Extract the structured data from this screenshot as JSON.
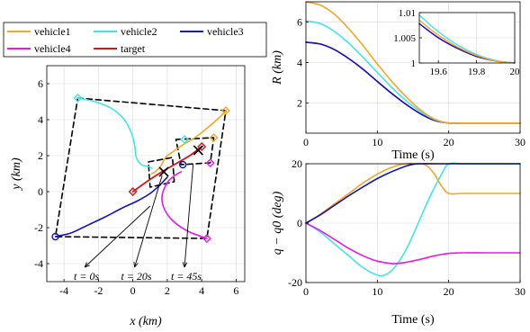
{
  "colors": {
    "vehicle1": "#F5A623",
    "vehicle2": "#3FE6E8",
    "vehicle3": "#1414B8",
    "vehicle4": "#E619E6",
    "target": "#D91414",
    "formation": "#000000"
  },
  "legend": {
    "placement": "top-left",
    "entries": [
      "vehicle1",
      "vehicle2",
      "vehicle3",
      "vehicle4",
      "target"
    ]
  },
  "chart_data": [
    {
      "id": "trajectory",
      "type": "line",
      "xlabel": "x (km)",
      "ylabel": "y (km)",
      "xlim": [
        -5,
        6.5
      ],
      "ylim": [
        -5,
        7
      ],
      "xticks": [
        -4,
        -2,
        0,
        2,
        4,
        6
      ],
      "yticks": [
        -4,
        -2,
        0,
        2,
        4,
        6
      ],
      "grid": true,
      "series": [
        {
          "name": "vehicle1",
          "x": [
            5.4,
            5.0,
            4.4,
            3.6,
            2.9,
            2.3,
            1.9,
            1.6,
            1.3,
            1.1
          ],
          "y": [
            4.5,
            4.1,
            3.6,
            3.0,
            2.6,
            2.2,
            1.9,
            1.4,
            1.1,
            1.0
          ]
        },
        {
          "name": "vehicle2",
          "x": [
            -3.2,
            -2.2,
            -1.2,
            -0.5,
            -0.1,
            0.1,
            0.2,
            0.5,
            0.9,
            1.1
          ],
          "y": [
            5.2,
            5.0,
            4.6,
            4.0,
            3.3,
            2.6,
            1.9,
            1.5,
            1.4,
            1.3
          ]
        },
        {
          "name": "vehicle3",
          "x": [
            -4.5,
            -3.6,
            -2.7,
            -1.6,
            -0.6,
            0.3,
            1.0,
            1.5,
            1.8,
            2.0
          ],
          "y": [
            -2.5,
            -2.3,
            -1.9,
            -1.4,
            -0.9,
            -0.5,
            -0.1,
            0.3,
            0.6,
            0.8
          ]
        },
        {
          "name": "vehicle4",
          "x": [
            4.3,
            3.2,
            2.3,
            1.8,
            1.7,
            2.0,
            2.3,
            2.6,
            2.8
          ],
          "y": [
            -2.6,
            -2.2,
            -1.6,
            -0.9,
            -0.2,
            0.5,
            0.8,
            1.0,
            1.1
          ]
        },
        {
          "name": "target",
          "x": [
            0,
            0.8,
            1.6,
            2.4,
            3.3,
            4.0
          ],
          "y": [
            0,
            0.55,
            1.05,
            1.5,
            2.0,
            2.5
          ]
        }
      ],
      "formations": [
        {
          "time": "t = 0s",
          "x": [
            -3.2,
            5.4,
            4.3,
            -4.5
          ],
          "y": [
            5.2,
            4.5,
            -2.6,
            -2.5
          ]
        },
        {
          "time": "t = 20s",
          "x": [
            0.9,
            2.3,
            2.4,
            1.0
          ],
          "y": [
            1.65,
            1.9,
            0.55,
            0.25
          ]
        },
        {
          "time": "t = 45s",
          "x": [
            2.5,
            4.7,
            4.5,
            2.8
          ],
          "y": [
            2.9,
            3.0,
            1.6,
            1.5
          ]
        }
      ],
      "markers": {
        "crosses": [
          {
            "x": 1.8,
            "y": 1.1
          },
          {
            "x": 3.8,
            "y": 2.3
          }
        ],
        "vehicle1_positions": [
          {
            "x": 5.4,
            "y": 4.5
          },
          {
            "x": 4.7,
            "y": 3.0
          }
        ],
        "vehicle2_positions": [
          {
            "x": -3.2,
            "y": 5.2
          },
          {
            "x": 3.0,
            "y": 2.9
          }
        ],
        "vehicle3_positions": [
          {
            "x": -4.5,
            "y": -2.5
          },
          {
            "x": 2.9,
            "y": 1.5
          }
        ],
        "vehicle4_positions": [
          {
            "x": 4.3,
            "y": -2.6
          },
          {
            "x": 4.5,
            "y": 1.6
          }
        ],
        "target_positions": [
          {
            "x": 0,
            "y": 0
          },
          {
            "x": 4.0,
            "y": 2.5
          }
        ]
      },
      "annotations": [
        {
          "text": "t = 0s",
          "from": {
            "x": 1.0,
            "y": -0.8
          },
          "to": {
            "x": -2.8,
            "y": -4.2
          }
        },
        {
          "text": "t = 20s",
          "from": {
            "x": 1.7,
            "y": 0.9
          },
          "to": {
            "x": 0.1,
            "y": -4.2
          }
        },
        {
          "text": "t = 45s",
          "from": {
            "x": 3.5,
            "y": 1.5
          },
          "to": {
            "x": 3.0,
            "y": -4.2
          }
        }
      ]
    },
    {
      "id": "range",
      "type": "line",
      "xlabel": "Time (s)",
      "ylabel": "R (km)",
      "xlim": [
        0,
        30
      ],
      "ylim": [
        0.5,
        7
      ],
      "xticks": [
        0,
        10,
        20,
        30
      ],
      "yticks": [
        2,
        4,
        6
      ],
      "grid": true,
      "series": [
        {
          "name": "vehicle1",
          "x": [
            0,
            2,
            4,
            6,
            8,
            10,
            12,
            14,
            16,
            18,
            20,
            22,
            24,
            26,
            28,
            30
          ],
          "y": [
            7.0,
            6.84,
            6.38,
            5.67,
            4.83,
            3.93,
            3.07,
            2.31,
            1.66,
            1.2,
            1.0,
            1.0,
            1.0,
            1.0,
            1.0,
            1.0
          ]
        },
        {
          "name": "vehicle2",
          "x": [
            0,
            2,
            4,
            6,
            8,
            10,
            12,
            14,
            16,
            18,
            20,
            22,
            24,
            26,
            28,
            30
          ],
          "y": [
            6.05,
            5.92,
            5.53,
            4.95,
            4.25,
            3.51,
            2.77,
            2.12,
            1.58,
            1.18,
            1.0,
            1.0,
            1.0,
            1.0,
            1.0,
            1.0
          ]
        },
        {
          "name": "vehicle3",
          "x": [
            0,
            2,
            4,
            6,
            8,
            10,
            12,
            14,
            16,
            18,
            20,
            22,
            24,
            26,
            28,
            30
          ],
          "y": [
            5.0,
            4.91,
            4.63,
            4.19,
            3.66,
            3.06,
            2.47,
            1.93,
            1.47,
            1.13,
            1.0,
            1.0,
            1.0,
            1.0,
            1.0,
            1.0
          ]
        },
        {
          "name": "vehicle4",
          "x": [
            0,
            2,
            4,
            6,
            8,
            10,
            12,
            14,
            16,
            18,
            20,
            22,
            24,
            26,
            28,
            30
          ],
          "y": [
            5.0,
            4.91,
            4.63,
            4.19,
            3.66,
            3.06,
            2.47,
            1.93,
            1.47,
            1.13,
            1.0,
            1.0,
            1.0,
            1.0,
            1.0,
            1.0
          ]
        }
      ],
      "inset": {
        "xlim": [
          19.5,
          20.0
        ],
        "ylim": [
          1.0,
          1.01
        ],
        "xticks": [
          19.6,
          19.8,
          20
        ],
        "yticks": [
          1,
          1.005,
          1.01
        ],
        "ytick_labels": [
          "1",
          "1.005",
          "1.01"
        ],
        "series": [
          {
            "name": "vehicle1",
            "x": [
              19.5,
              19.6,
              19.7,
              19.8,
              19.9,
              20.0
            ],
            "y": [
              1.0085,
              1.0055,
              1.0032,
              1.0015,
              1.0004,
              1.0
            ]
          },
          {
            "name": "vehicle2",
            "x": [
              19.5,
              19.6,
              19.7,
              19.8,
              19.9,
              20.0
            ],
            "y": [
              1.0095,
              1.0062,
              1.0036,
              1.0017,
              1.0005,
              1.0
            ]
          },
          {
            "name": "vehicle3",
            "x": [
              19.5,
              19.6,
              19.7,
              19.8,
              19.9,
              20.0
            ],
            "y": [
              1.0078,
              1.005,
              1.0029,
              1.0013,
              1.0004,
              1.0
            ]
          },
          {
            "name": "vehicle4",
            "x": [
              19.5,
              19.6,
              19.7,
              19.8,
              19.9,
              20.0
            ],
            "y": [
              1.0078,
              1.005,
              1.0029,
              1.0013,
              1.0004,
              1.0
            ]
          }
        ]
      }
    },
    {
      "id": "heading",
      "type": "line",
      "xlabel": "Time (s)",
      "ylabel": "q − q0 (deg)",
      "xlim": [
        0,
        30
      ],
      "ylim": [
        -20,
        20
      ],
      "xticks": [
        0,
        10,
        20,
        30
      ],
      "yticks": [
        -20,
        0,
        20
      ],
      "grid": true,
      "series": [
        {
          "name": "vehicle1",
          "x": [
            0,
            2,
            4,
            6,
            8,
            10,
            12,
            14,
            16,
            17,
            18,
            19,
            20,
            22,
            25,
            30
          ],
          "y": [
            0,
            3.0,
            6.5,
            10,
            13.5,
            16.5,
            18.8,
            20,
            20,
            19.2,
            16.5,
            12.5,
            10,
            10,
            10,
            10
          ]
        },
        {
          "name": "vehicle2",
          "x": [
            0,
            2,
            4,
            6,
            8,
            10,
            11,
            12,
            13,
            14,
            15,
            16,
            17,
            18,
            19,
            20,
            22,
            25,
            30
          ],
          "y": [
            0,
            -3.0,
            -7.0,
            -11.0,
            -15.0,
            -17.5,
            -17.5,
            -16.0,
            -13.0,
            -9.0,
            -4.0,
            1.5,
            7.0,
            12.0,
            16.5,
            20,
            20,
            20,
            20
          ]
        },
        {
          "name": "vehicle3",
          "x": [
            0,
            2,
            4,
            6,
            8,
            10,
            12,
            14,
            15,
            16,
            18,
            20,
            22,
            25,
            30
          ],
          "y": [
            0,
            2.8,
            6.0,
            9.2,
            12.2,
            15.0,
            17.3,
            19.2,
            19.8,
            20,
            20,
            20,
            20,
            20,
            20
          ]
        },
        {
          "name": "vehicle4",
          "x": [
            0,
            2,
            4,
            6,
            8,
            10,
            12,
            13,
            14,
            16,
            18,
            20,
            22,
            25,
            30
          ],
          "y": [
            0,
            -2.5,
            -5.5,
            -8.5,
            -11.0,
            -12.8,
            -13.6,
            -13.5,
            -13.2,
            -12.2,
            -11.0,
            -10.2,
            -10,
            -10,
            -10
          ]
        }
      ]
    }
  ]
}
